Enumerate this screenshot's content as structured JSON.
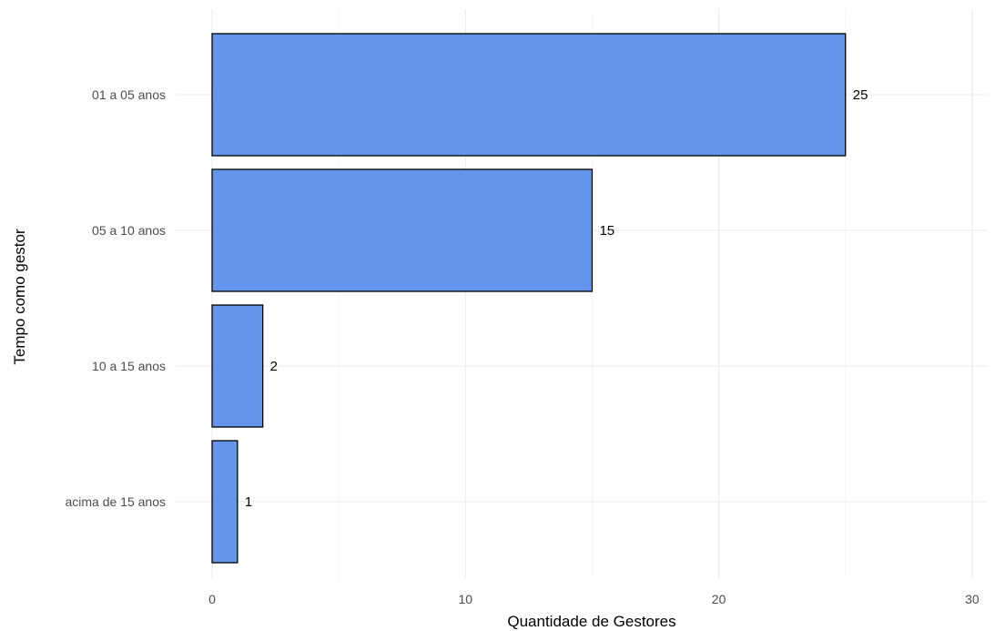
{
  "chart_data": {
    "type": "bar",
    "orientation": "horizontal",
    "categories": [
      "01 a 05 anos",
      "05 a 10 anos",
      "10 a 15 anos",
      "acima de 15 anos"
    ],
    "values": [
      25,
      15,
      2,
      1
    ],
    "data_labels": [
      "25",
      "15",
      "2",
      "1"
    ],
    "xlabel": "Quantidade de Gestores",
    "ylabel": "Tempo como gestor",
    "xlim": [
      0,
      30
    ],
    "x_ticks": [
      0,
      10,
      20,
      30
    ],
    "x_tick_labels": [
      "0",
      "10",
      "20",
      "30"
    ],
    "grid": true,
    "bar_color": "#6495ED",
    "bar_border_color": "#000000"
  }
}
